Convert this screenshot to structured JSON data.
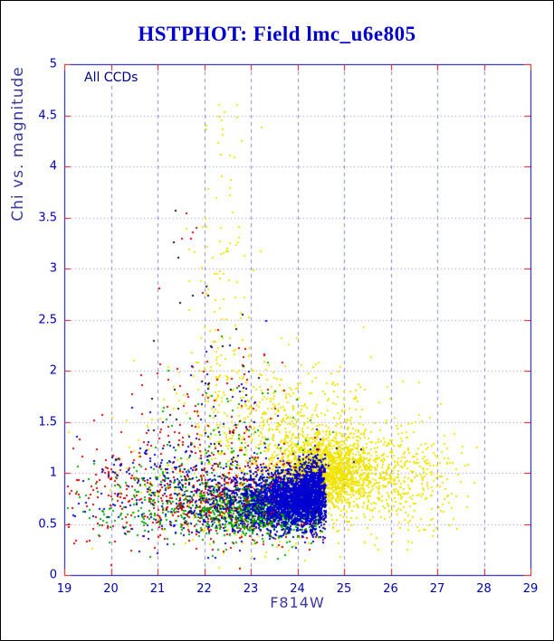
{
  "chart_data": {
    "type": "scatter",
    "title": "HSTPHOT: Field lmc_u6e805",
    "xlabel": "F814W",
    "ylabel": "Chi vs. magnitude",
    "annotation": "All CCDs",
    "xlim": [
      19,
      29
    ],
    "ylim": [
      0,
      5
    ],
    "x_ticks": [
      19,
      20,
      21,
      22,
      23,
      24,
      25,
      26,
      27,
      28,
      29
    ],
    "y_ticks": [
      0,
      0.5,
      1,
      1.5,
      2,
      2.5,
      3,
      3.5,
      4,
      4.5,
      5
    ],
    "y_tick_labels": [
      "0",
      "0.5",
      "1",
      "1.5",
      "2",
      "2.5",
      "3",
      "3.5",
      "4",
      "4.5",
      "5"
    ],
    "grid": true,
    "legend": "none",
    "point_size": 2,
    "seed": 8052005,
    "colors": {
      "frame": "#0000b4",
      "grid": "#8484d6",
      "tick": "#d01010",
      "tick_label": "#0000b4",
      "title": "#0000cd",
      "axis_label": "#3a3a9c",
      "annotation": "#000080"
    },
    "series": [
      {
        "name": "yellow",
        "color": "#f0e400",
        "clusters": [
          {
            "n": 1700,
            "cx": 24.55,
            "cy": 1.0,
            "sx": 0.5,
            "sy": 0.17,
            "xmin": 23.2
          },
          {
            "n": 450,
            "cx": 25.7,
            "cy": 0.95,
            "sx": 0.85,
            "sy": 0.25,
            "xmax": 27.9
          },
          {
            "n": 130,
            "cx": 26.6,
            "cy": 0.95,
            "sx": 0.6,
            "sy": 0.3,
            "xmax": 27.7
          },
          {
            "n": 450,
            "cx": 23.9,
            "cy": 1.4,
            "sx": 0.9,
            "sy": 0.35,
            "ymin": 1.0
          },
          {
            "n": 260,
            "cx": 23.2,
            "cy": 0.75,
            "sx": 1.0,
            "sy": 0.25
          },
          {
            "n": 170,
            "cx": 22.4,
            "cy": 1.9,
            "sx": 0.35,
            "sy": 1.0,
            "ymin": 1.2,
            "ymax": 4.75
          },
          {
            "n": 10,
            "cx": 22.25,
            "cy": 4.4,
            "sx": 0.3,
            "sy": 0.22
          },
          {
            "n": 70,
            "cx": 21.5,
            "cy": 1.1,
            "sx": 1.0,
            "sy": 0.4
          }
        ]
      },
      {
        "name": "red",
        "color": "#d40000",
        "clusters": [
          {
            "n": 650,
            "cx": 23.1,
            "cy": 0.72,
            "sx": 1.1,
            "sy": 0.18,
            "xmax": 24.6
          },
          {
            "n": 200,
            "cx": 20.5,
            "cy": 0.85,
            "sx": 1.1,
            "sy": 0.3,
            "xmin": 19.05
          },
          {
            "n": 90,
            "cx": 22.3,
            "cy": 1.4,
            "sx": 0.9,
            "sy": 0.5,
            "ymin": 0.95,
            "ymax": 3.3
          },
          {
            "n": 6,
            "cx": 21.7,
            "cy": 3.3,
            "sx": 0.4,
            "sy": 0.35
          }
        ]
      },
      {
        "name": "green",
        "color": "#00a800",
        "clusters": [
          {
            "n": 950,
            "cx": 23.4,
            "cy": 0.64,
            "sx": 0.85,
            "sy": 0.13,
            "xmax": 24.55
          },
          {
            "n": 250,
            "cx": 21.2,
            "cy": 0.72,
            "sx": 1.2,
            "sy": 0.22,
            "xmin": 19.05
          },
          {
            "n": 80,
            "cx": 22.6,
            "cy": 1.2,
            "sx": 0.9,
            "sy": 0.4,
            "ymin": 0.85,
            "ymax": 3.1
          }
        ]
      },
      {
        "name": "blue",
        "color": "#0000d0",
        "clusters": [
          {
            "n": 1500,
            "cx": 23.95,
            "cy": 0.74,
            "sx": 0.45,
            "sy": 0.13,
            "xmax": 24.62
          },
          {
            "n": 700,
            "cx": 24.35,
            "cy": 0.82,
            "sx": 0.18,
            "sy": 0.17,
            "xmax": 24.62
          },
          {
            "n": 500,
            "cx": 23.2,
            "cy": 0.72,
            "sx": 0.8,
            "sy": 0.16,
            "xmax": 24.62
          },
          {
            "n": 220,
            "cx": 21.3,
            "cy": 0.8,
            "sx": 1.3,
            "sy": 0.28,
            "xmin": 19.05
          },
          {
            "n": 45,
            "cx": 22.3,
            "cy": 1.5,
            "sx": 0.7,
            "sy": 0.55,
            "ymin": 1.0,
            "ymax": 3.2
          }
        ]
      },
      {
        "name": "dark",
        "color": "#101010",
        "clusters": [
          {
            "n": 45,
            "cx": 22.3,
            "cy": 1.3,
            "sx": 1.1,
            "sy": 0.55,
            "ymin": 0.6
          },
          {
            "n": 8,
            "cx": 22.0,
            "cy": 2.6,
            "sx": 0.5,
            "sy": 0.6
          }
        ]
      }
    ]
  }
}
